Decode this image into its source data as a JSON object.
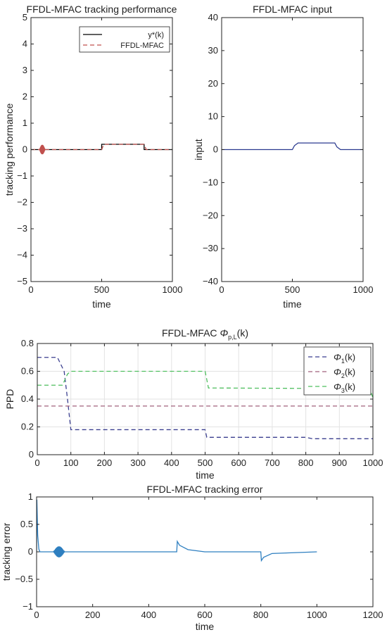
{
  "chart_data": [
    {
      "id": "track",
      "type": "line",
      "title": "FFDL-MFAC tracking performance",
      "xlabel": "time",
      "ylabel": "tracking performance",
      "xlim": [
        0,
        1000
      ],
      "ylim": [
        -5,
        5
      ],
      "xticks": [
        0,
        500,
        1000
      ],
      "yticks": [
        -5,
        -4,
        -3,
        -2,
        -1,
        0,
        1,
        2,
        3,
        4,
        5
      ],
      "grid": false,
      "legend": "top-right",
      "series": [
        {
          "name": "y*(k)",
          "color": "#000000",
          "dash": "solid",
          "x": [
            0,
            500,
            500,
            800,
            800,
            1000
          ],
          "y": [
            0,
            0,
            0.2,
            0.2,
            0,
            0
          ]
        },
        {
          "name": "FFDL-MFAC",
          "color": "#c0504d",
          "dash": "dashed",
          "x": [
            0,
            500,
            515,
            800,
            815,
            1000
          ],
          "y": [
            0,
            0,
            0.2,
            0.2,
            0,
            0
          ],
          "oscillation": {
            "x_range": [
              60,
              100
            ],
            "amplitude": 0.18
          }
        }
      ]
    },
    {
      "id": "input",
      "type": "line",
      "title": "FFDL-MFAC input",
      "xlabel": "time",
      "ylabel": "input",
      "xlim": [
        0,
        1000
      ],
      "ylim": [
        -40,
        40
      ],
      "xticks": [
        0,
        500,
        1000
      ],
      "yticks": [
        -40,
        -30,
        -20,
        -10,
        0,
        10,
        20,
        30,
        40
      ],
      "grid": false,
      "series": [
        {
          "color": "#2b3a8f",
          "dash": "solid",
          "x": [
            0,
            500,
            515,
            540,
            800,
            815,
            840,
            1000
          ],
          "y": [
            0,
            0,
            1.2,
            2,
            2,
            0.8,
            0,
            0
          ]
        }
      ]
    },
    {
      "id": "ppd",
      "type": "line",
      "title_main": "FFDL-MFAC ",
      "title_phi": "Φ",
      "title_sub": "p,L",
      "title_tail": "(k)",
      "xlabel": "time",
      "ylabel": "PPD",
      "xlim": [
        0,
        1000
      ],
      "ylim": [
        0,
        0.8
      ],
      "xticks": [
        0,
        100,
        200,
        300,
        400,
        500,
        600,
        700,
        800,
        900,
        1000
      ],
      "yticks": [
        0,
        0.2,
        0.4,
        0.6,
        0.8
      ],
      "grid": true,
      "legend": "top-right",
      "series": [
        {
          "label_phi": "Φ",
          "label_sub": "1",
          "label_tail": "(k)",
          "color": "#3b3f8f",
          "dash": "dashed",
          "x": [
            0,
            60,
            80,
            90,
            100,
            500,
            505,
            800,
            820,
            1000
          ],
          "y": [
            0.7,
            0.7,
            0.6,
            0.4,
            0.18,
            0.18,
            0.125,
            0.125,
            0.115,
            0.115
          ]
        },
        {
          "label_phi": "Φ",
          "label_sub": "2",
          "label_tail": "(k)",
          "color": "#a0607c",
          "dash": "dashed",
          "x": [
            0,
            1000
          ],
          "y": [
            0.35,
            0.35
          ]
        },
        {
          "label_phi": "Φ",
          "label_sub": "3",
          "label_tail": "(k)",
          "color": "#4fbf5f",
          "dash": "dashed",
          "x": [
            0,
            75,
            90,
            100,
            500,
            510,
            990,
            1000
          ],
          "y": [
            0.5,
            0.5,
            0.58,
            0.6,
            0.6,
            0.48,
            0.475,
            0.41
          ]
        }
      ]
    },
    {
      "id": "error",
      "type": "line",
      "title": "FFDL-MFAC tracking error",
      "xlabel": "time",
      "ylabel": "tracking error",
      "xlim": [
        0,
        1200
      ],
      "ylim": [
        -1,
        1
      ],
      "xticks": [
        0,
        200,
        400,
        600,
        800,
        1000,
        1200
      ],
      "yticks": [
        -1,
        -0.5,
        0,
        0.5,
        1
      ],
      "grid": false,
      "series": [
        {
          "color": "#2e7fc0",
          "dash": "solid",
          "x": [
            0,
            1,
            4,
            8,
            12,
            500,
            502,
            510,
            540,
            600,
            800,
            802,
            810,
            840,
            1000
          ],
          "y": [
            0,
            0.95,
            0.3,
            0.05,
            0,
            0,
            0.19,
            0.12,
            0.04,
            0,
            0,
            -0.16,
            -0.1,
            -0.03,
            0
          ],
          "oscillation": {
            "x_range": [
              60,
              100
            ],
            "amplitude": 0.1
          }
        }
      ]
    }
  ]
}
